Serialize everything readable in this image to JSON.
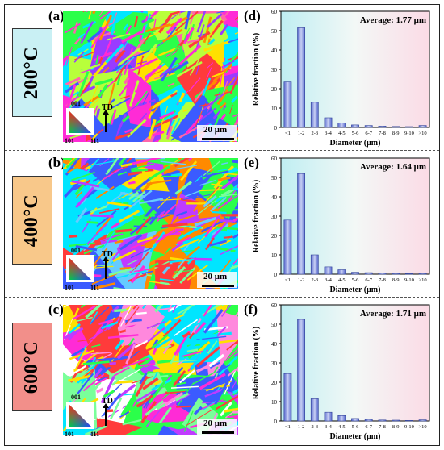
{
  "panels": {
    "a": "(a)",
    "b": "(b)",
    "c": "(c)",
    "d": "(d)",
    "e": "(e)",
    "f": "(f)"
  },
  "temperatures": [
    "200°C",
    "400°C",
    "600°C"
  ],
  "temp_colors": [
    "#c9f0f4",
    "#f8c88a",
    "#f28f8a"
  ],
  "legend": {
    "top": "001",
    "left": "101",
    "right": "111",
    "direction": "TD"
  },
  "scale_bar": "20 μm",
  "chart_data": [
    {
      "type": "bar",
      "annotation": "Average: 1.77 μm",
      "categories": [
        "<1",
        "1-2",
        "2-3",
        "3-4",
        "4-5",
        "5-6",
        "6-7",
        "7-8",
        "8-9",
        "9-10",
        ">10"
      ],
      "values": [
        23.5,
        51.5,
        13,
        5,
        2.3,
        1.3,
        1,
        0.7,
        0.5,
        0.4,
        1
      ],
      "xlabel": "Diameter (μm)",
      "ylabel": "Relative fraction (%)",
      "ylim": [
        0,
        60
      ],
      "yticks": [
        0,
        10,
        20,
        30,
        40,
        50,
        60
      ]
    },
    {
      "type": "bar",
      "annotation": "Average: 1.64 μm",
      "categories": [
        "<1",
        "1-2",
        "2-3",
        "3-4",
        "4-5",
        "5-6",
        "6-7",
        "7-8",
        "8-9",
        "9-10",
        ">10"
      ],
      "values": [
        28,
        52,
        10,
        3.8,
        2.3,
        1,
        0.8,
        0.6,
        0.4,
        0.3,
        0.4
      ],
      "xlabel": "Diameter (μm)",
      "ylabel": "Relative fraction (%)",
      "ylim": [
        0,
        60
      ],
      "yticks": [
        0,
        10,
        20,
        30,
        40,
        50,
        60
      ]
    },
    {
      "type": "bar",
      "annotation": "Average: 1.71 μm",
      "categories": [
        "<1",
        "1-2",
        "2-3",
        "3-4",
        "4-5",
        "5-6",
        "6-7",
        "7-8",
        "8-9",
        "9-10",
        ">10"
      ],
      "values": [
        24.5,
        52.5,
        11.5,
        4.5,
        2.8,
        1.3,
        0.8,
        0.5,
        0.4,
        0.3,
        0.6
      ],
      "xlabel": "Diameter (μm)",
      "ylabel": "Relative fraction (%)",
      "ylim": [
        0,
        60
      ],
      "yticks": [
        0,
        10,
        20,
        30,
        40,
        50,
        60
      ]
    }
  ]
}
